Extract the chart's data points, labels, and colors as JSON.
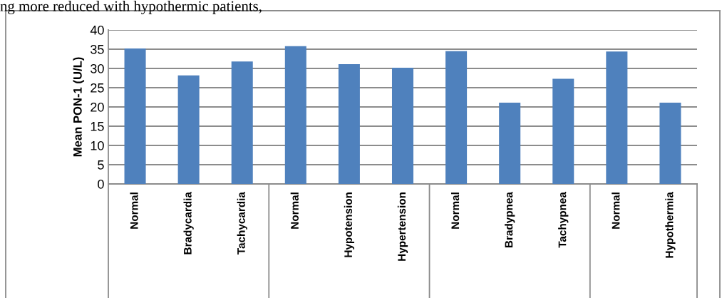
{
  "chart_data": {
    "type": "bar",
    "ylabel": "Mean PON-1 (U/L)",
    "annotations": [
      "ng more reduced with hypothermic patients,"
    ],
    "categories": [
      "Normal",
      "Bradycardia",
      "Tachycardia",
      "Normal",
      "Hypotension",
      "Hypertension",
      "Normal",
      "Bradypnea",
      "Tachypnea",
      "Normal",
      "Hypothermia"
    ],
    "values": [
      35.2,
      28.2,
      31.8,
      35.8,
      31.1,
      30.2,
      34.5,
      21.1,
      27.3,
      34.4,
      21.1
    ],
    "color": "#4f81bd",
    "ylim": [
      0,
      40
    ],
    "yticks": [
      0,
      5,
      10,
      15,
      20,
      25,
      30,
      35,
      40
    ],
    "grid": "y",
    "legend": false
  }
}
